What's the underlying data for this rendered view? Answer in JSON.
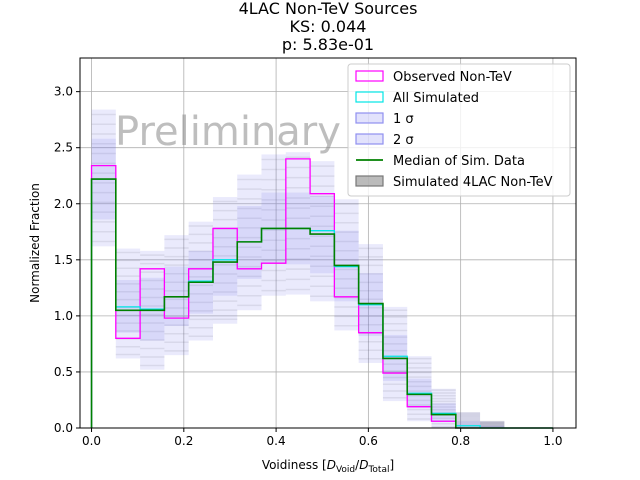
{
  "chart_data": {
    "type": "bar",
    "title_lines": [
      "4LAC Non-TeV Sources",
      "KS: 0.044",
      "p: 5.83e-01"
    ],
    "xlabel": "Voidiness [D_Void/D_Total]",
    "ylabel": "Normalized Fraction",
    "watermark": "Preliminary",
    "xlim": [
      -0.025,
      1.05
    ],
    "ylim": [
      0,
      3.3
    ],
    "xticks": [
      "0.0",
      "0.2",
      "0.4",
      "0.6",
      "0.8",
      "1.0"
    ],
    "yticks": [
      "0.0",
      "0.5",
      "1.0",
      "1.5",
      "2.0",
      "2.5",
      "3.0"
    ],
    "grid": true,
    "legend_position": "upper right",
    "bin_edges": [
      0.0,
      0.0526,
      0.1053,
      0.1579,
      0.2105,
      0.2632,
      0.3158,
      0.3684,
      0.4211,
      0.4737,
      0.5263,
      0.5789,
      0.6316,
      0.6842,
      0.7368,
      0.7895,
      0.8421,
      0.8947,
      0.9474,
      1.0
    ],
    "series": [
      {
        "name": "Observed Non-TeV",
        "color": "#ff00ff",
        "values": [
          2.34,
          0.8,
          1.42,
          0.98,
          1.42,
          1.78,
          1.42,
          1.47,
          2.4,
          2.09,
          1.17,
          0.85,
          0.49,
          0.19,
          0.06,
          0.0,
          0.0,
          0.0,
          0.0
        ]
      },
      {
        "name": "All Simulated",
        "color": "#00e5e5",
        "values": [
          2.22,
          1.08,
          1.06,
          1.17,
          1.31,
          1.5,
          1.66,
          1.78,
          1.78,
          1.76,
          1.44,
          1.1,
          0.64,
          0.31,
          0.13,
          0.02,
          0.0,
          0.0,
          0.0
        ]
      },
      {
        "name": "Median of Sim. Data",
        "color": "#008000",
        "values": [
          2.22,
          1.05,
          1.05,
          1.17,
          1.3,
          1.48,
          1.66,
          1.78,
          1.78,
          1.73,
          1.45,
          1.11,
          0.62,
          0.3,
          0.12,
          0.0,
          0.0,
          0.0,
          0.0
        ]
      }
    ],
    "band_1sigma": {
      "name": "1 σ",
      "color": "#7070ee",
      "low": [
        1.86,
        0.85,
        0.78,
        0.91,
        1.02,
        1.18,
        1.33,
        1.47,
        1.46,
        1.38,
        1.13,
        0.82,
        0.42,
        0.18,
        0.06,
        0.0,
        0.0,
        0.0,
        0.0
      ],
      "high": [
        2.58,
        1.32,
        1.34,
        1.44,
        1.58,
        1.79,
        1.98,
        2.1,
        2.1,
        2.07,
        1.76,
        1.38,
        0.83,
        0.44,
        0.22,
        0.06,
        0.02,
        0.0,
        0.0
      ]
    },
    "band_2sigma": {
      "name": "2 σ",
      "color": "#7070ee",
      "low": [
        1.62,
        0.62,
        0.52,
        0.65,
        0.78,
        0.93,
        1.05,
        1.18,
        1.19,
        1.13,
        0.87,
        0.58,
        0.24,
        0.06,
        0.0,
        0.0,
        0.0,
        0.0,
        0.0
      ],
      "high": [
        2.84,
        1.6,
        1.58,
        1.72,
        1.84,
        2.06,
        2.26,
        2.44,
        2.46,
        2.38,
        2.04,
        1.64,
        1.08,
        0.64,
        0.35,
        0.14,
        0.06,
        0.0,
        0.0
      ]
    },
    "simulated_4lac_name": "Simulated 4LAC Non-TeV",
    "legend_labels": [
      "Observed Non-TeV",
      "All Simulated",
      "1 σ",
      "2 σ",
      "Median of Sim. Data",
      "Simulated 4LAC Non-TeV"
    ]
  }
}
